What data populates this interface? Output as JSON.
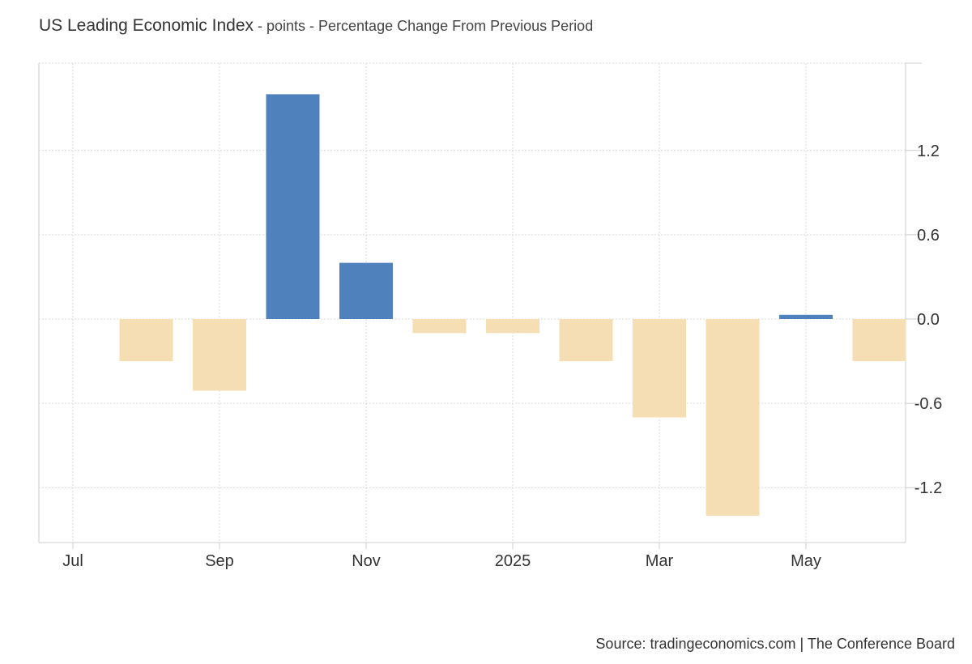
{
  "header": {
    "title": "US Leading Economic Index",
    "subtitle": " - points - Percentage Change From Previous Period"
  },
  "footer": {
    "source": "Source: tradingeconomics.com | The Conference Board"
  },
  "colors": {
    "positive": "#4f81bd",
    "negative": "#f5deb3",
    "grid": "#d9d9d9",
    "axis": "#cccccc",
    "text": "#333333"
  },
  "chart_data": {
    "type": "bar",
    "categories": [
      "2024-07",
      "2024-08",
      "2024-09",
      "2024-10",
      "2024-11",
      "2024-12",
      "2025-01",
      "2025-02",
      "2025-03",
      "2025-04",
      "2025-05",
      "2025-06"
    ],
    "values": [
      0.0,
      -0.3,
      -0.51,
      1.6,
      0.4,
      -0.1,
      -0.1,
      -0.3,
      -0.7,
      -1.4,
      0.03,
      -0.3
    ],
    "x_tick_labels": [
      {
        "label": "Jul",
        "category": "2024-07"
      },
      {
        "label": "Sep",
        "category": "2024-09"
      },
      {
        "label": "Nov",
        "category": "2024-11"
      },
      {
        "label": "2025",
        "category": "2025-01"
      },
      {
        "label": "Mar",
        "category": "2025-03"
      },
      {
        "label": "May",
        "category": "2025-05"
      }
    ],
    "y_ticks": [
      1.2,
      0.6,
      0.0,
      -0.6,
      -1.2
    ],
    "y_tick_labels": [
      "1.2",
      "0.6",
      "0.0",
      "-0.6",
      "-1.2"
    ],
    "ylim": [
      -1.6,
      1.8
    ],
    "y_axis_side": "right",
    "grid": true,
    "legend": "none"
  }
}
